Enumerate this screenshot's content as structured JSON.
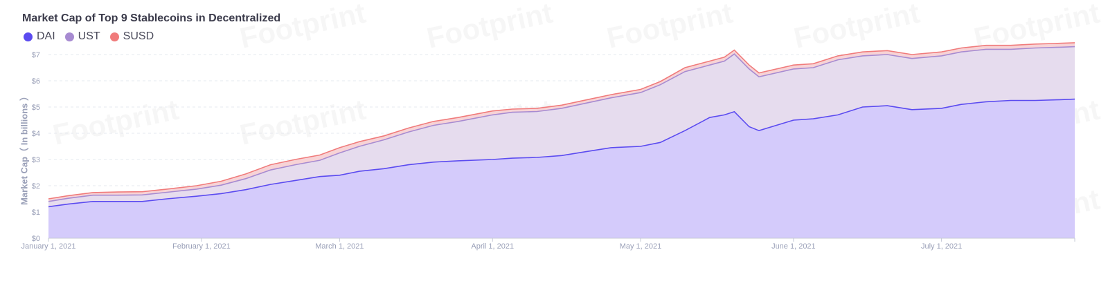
{
  "chart_data": {
    "type": "area",
    "stacked": true,
    "title": "Market Cap of Top 9 Stablecoins in Decentralized",
    "ylabel": "Market Cap（ In billions ）",
    "xlabel": "",
    "ylim": [
      0,
      7.5
    ],
    "y_ticks": [
      "$0",
      "$1",
      "$2",
      "$3",
      "$4",
      "$5",
      "$6",
      "$7"
    ],
    "y_tick_values": [
      0,
      1,
      2,
      3,
      4,
      5,
      6,
      7
    ],
    "x_ticks": [
      "January 1, 2021",
      "February 1, 2021",
      "March 1, 2021",
      "April 1, 2021",
      "May 1, 2021",
      "June 1, 2021",
      "July 1, 2021"
    ],
    "x_tick_dates": [
      "2021-01-01",
      "2021-02-01",
      "2021-03-01",
      "2021-04-01",
      "2021-05-01",
      "2021-06-01",
      "2021-07-01"
    ],
    "x_range": [
      "2021-01-01",
      "2021-07-28"
    ],
    "grid": true,
    "legend_position": "top-left",
    "x": [
      "2021-01-01",
      "2021-01-05",
      "2021-01-10",
      "2021-01-15",
      "2021-01-20",
      "2021-01-25",
      "2021-01-31",
      "2021-02-05",
      "2021-02-10",
      "2021-02-15",
      "2021-02-20",
      "2021-02-25",
      "2021-03-01",
      "2021-03-05",
      "2021-03-10",
      "2021-03-15",
      "2021-03-20",
      "2021-03-25",
      "2021-04-01",
      "2021-04-05",
      "2021-04-10",
      "2021-04-15",
      "2021-04-20",
      "2021-04-25",
      "2021-05-01",
      "2021-05-05",
      "2021-05-10",
      "2021-05-15",
      "2021-05-18",
      "2021-05-20",
      "2021-05-23",
      "2021-05-25",
      "2021-06-01",
      "2021-06-05",
      "2021-06-10",
      "2021-06-15",
      "2021-06-20",
      "2021-06-25",
      "2021-07-01",
      "2021-07-05",
      "2021-07-10",
      "2021-07-15",
      "2021-07-20",
      "2021-07-25",
      "2021-07-28"
    ],
    "series": [
      {
        "name": "DAI",
        "color": "#5b4bf0",
        "fill": "#d4cbfb",
        "values": [
          1.2,
          1.3,
          1.4,
          1.4,
          1.4,
          1.5,
          1.6,
          1.7,
          1.85,
          2.05,
          2.2,
          2.35,
          2.4,
          2.55,
          2.65,
          2.8,
          2.9,
          2.95,
          3.0,
          3.05,
          3.08,
          3.15,
          3.3,
          3.45,
          3.5,
          3.65,
          4.1,
          4.6,
          4.7,
          4.82,
          4.25,
          4.1,
          4.5,
          4.55,
          4.7,
          5.0,
          5.05,
          4.9,
          4.95,
          5.1,
          5.2,
          5.25,
          5.25,
          5.28,
          5.3
        ]
      },
      {
        "name": "UST",
        "color": "#a78bd1",
        "fill": "#e6dcee",
        "values": [
          0.2,
          0.22,
          0.24,
          0.24,
          0.25,
          0.25,
          0.27,
          0.32,
          0.42,
          0.55,
          0.6,
          0.62,
          0.85,
          0.95,
          1.1,
          1.25,
          1.4,
          1.5,
          1.7,
          1.75,
          1.75,
          1.8,
          1.85,
          1.9,
          2.05,
          2.2,
          2.25,
          2.0,
          2.05,
          2.2,
          2.2,
          2.05,
          1.95,
          1.95,
          2.1,
          1.95,
          1.95,
          1.95,
          2.0,
          2.0,
          2.0,
          1.95,
          2.0,
          2.0,
          2.0
        ]
      },
      {
        "name": "SUSD",
        "color": "#f07b7b",
        "fill": "#f7d3d6",
        "values": [
          0.1,
          0.1,
          0.1,
          0.12,
          0.12,
          0.12,
          0.13,
          0.15,
          0.18,
          0.2,
          0.2,
          0.2,
          0.2,
          0.18,
          0.15,
          0.15,
          0.15,
          0.15,
          0.15,
          0.12,
          0.12,
          0.12,
          0.12,
          0.12,
          0.12,
          0.12,
          0.15,
          0.15,
          0.15,
          0.15,
          0.15,
          0.15,
          0.15,
          0.15,
          0.15,
          0.15,
          0.15,
          0.15,
          0.15,
          0.15,
          0.15,
          0.15,
          0.15,
          0.15,
          0.15
        ]
      }
    ]
  }
}
